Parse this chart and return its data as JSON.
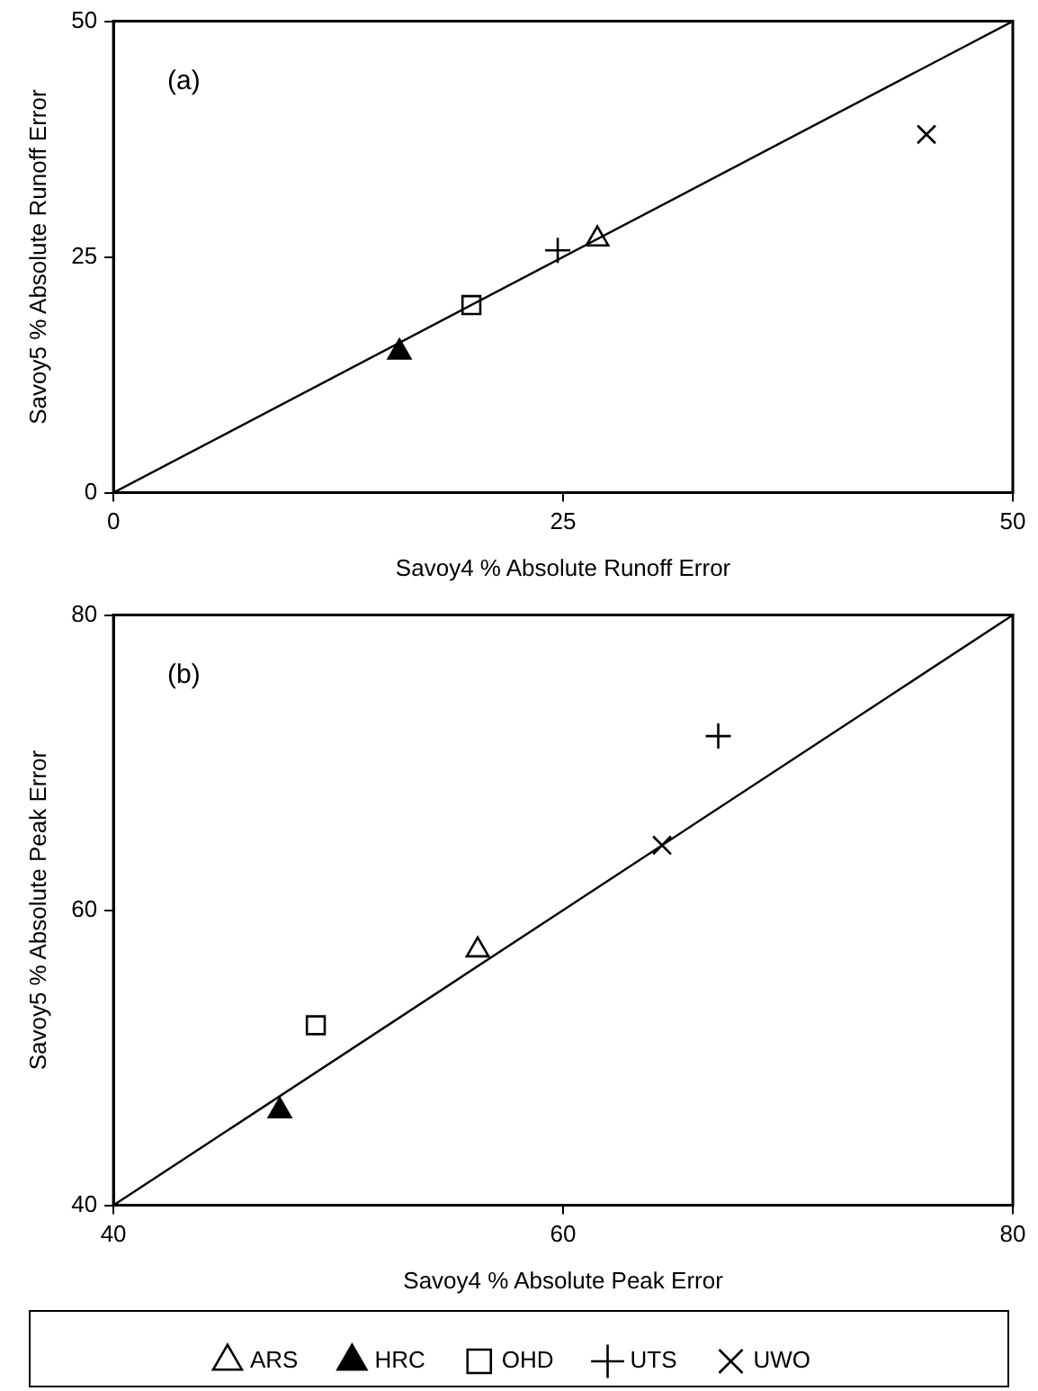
{
  "chart_data": [
    {
      "type": "scatter",
      "xlabel": "Savoy4 % Absolute Runoff Error",
      "ylabel": "Savoy5 % Absolute Runoff Error",
      "annotations": [
        "(a)"
      ],
      "xlim": [
        0,
        50
      ],
      "ylim": [
        0,
        50
      ],
      "xticks": [
        0,
        25,
        50
      ],
      "yticks": [
        0,
        25,
        50
      ],
      "grid": false,
      "legend": false,
      "series": [
        {
          "color": "#000000",
          "marker": "triangle",
          "x": [
            26.9
          ],
          "values": [
            26.9
          ]
        },
        {
          "color": "#000000",
          "marker": "triangle-filled",
          "x": [
            15.9
          ],
          "values": [
            14.9
          ]
        },
        {
          "color": "#000000",
          "marker": "square",
          "x": [
            19.9
          ],
          "values": [
            19.9
          ]
        },
        {
          "color": "#000000",
          "marker": "cross",
          "x": [
            24.7
          ],
          "values": [
            25.7
          ]
        },
        {
          "color": "#000000",
          "marker": "x",
          "x": [
            45.2
          ],
          "values": [
            38.0
          ]
        },
        {
          "type": "line",
          "color": "#000000",
          "marker": "none",
          "x": [
            0,
            50
          ],
          "values": [
            0,
            50
          ]
        }
      ]
    },
    {
      "type": "scatter",
      "xlabel": "Savoy4 % Absolute Peak Error",
      "ylabel": "Savoy5 % Absolute Peak Error",
      "annotations": [
        "(b)"
      ],
      "xlim": [
        40,
        80
      ],
      "ylim": [
        40,
        80
      ],
      "xticks": [
        40,
        60,
        80
      ],
      "yticks": [
        40,
        60,
        80
      ],
      "grid": false,
      "legend": "bottom",
      "series": [
        {
          "name": "ARS",
          "color": "#000000",
          "marker": "triangle",
          "x": [
            56.2
          ],
          "values": [
            57.3
          ]
        },
        {
          "name": "HRC",
          "color": "#000000",
          "marker": "triangle-filled",
          "x": [
            47.4
          ],
          "values": [
            46.4
          ]
        },
        {
          "name": "OHD",
          "color": "#000000",
          "marker": "square",
          "x": [
            49.0
          ],
          "values": [
            52.2
          ]
        },
        {
          "name": "UTS",
          "color": "#000000",
          "marker": "cross",
          "x": [
            66.9
          ],
          "values": [
            71.8
          ]
        },
        {
          "name": "UWO",
          "color": "#000000",
          "marker": "x",
          "x": [
            64.4
          ],
          "values": [
            64.4
          ]
        },
        {
          "type": "line",
          "color": "#000000",
          "marker": "none",
          "x": [
            40,
            80
          ],
          "values": [
            40,
            80
          ]
        }
      ]
    }
  ]
}
